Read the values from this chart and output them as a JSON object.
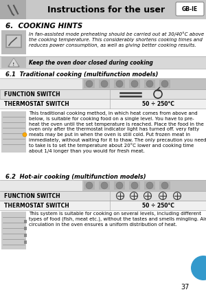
{
  "page_bg": "#ffffff",
  "header_bg": "#c8c8c8",
  "header_text": "Instructions for the user",
  "header_text_color": "#000000",
  "header_font_size": 9,
  "gb_ie_label": "GB-IE",
  "section_title": "6.  COOKING HINTS",
  "section_title_color": "#000000",
  "section_title_font_size": 7.5,
  "hint_text": "In fan-assisted mode preheating should be carried out at 30/40°C above\nthe cooking temperature. This considerably shortens cooking times and\nreduces power consumption, as well as giving better cooking results.",
  "hint_text_font_size": 5.0,
  "warning_text": "Keep the oven door closed during cooking",
  "warning_text_font_size": 5.5,
  "warning_bg": "#d8d8d8",
  "subsection1_title": "6.1  Traditional cooking (multifunction models)",
  "subsection2_title": "6.2  Hot-air cooking (multifunction models)",
  "subsection_title_font_size": 6.0,
  "table_header_bg": "#c0c0c0",
  "table_row1_bg": "#e0e0e0",
  "table_row2_bg": "#f0f0f0",
  "function_switch_label": "FUNCTION SWITCH",
  "thermostat_switch_label": "THERMOSTAT SWITCH",
  "thermostat_value1": "50 ÷ 250°C",
  "thermostat_value2": "50 ÷ 250°C",
  "table_label_font_size": 5.5,
  "body_text1": "This traditional cooking method, in which heat comes from above and\nbelow, is suitable for cooking food on a single level. You have to pre-\nheat the oven until the set temperature is reached. Place the food in the\noven only after the thermostat indicator light has turned off. very fatty\nmeats may be put in when the oven is still cold. Put frozen meat in\nimmediately, without waiting for it to thaw. The only precaution you need\nto take is to set the temperature about 20°C lower and cooking time\nabout 1/4 longer than you would for fresh meat.",
  "body_text2": "This system is suitable for cooking on several levels, including different\ntypes of food (fish, meat etc.), without the tastes and smells mingling. Air\ncirculation in the oven ensures a uniform distribution of heat.",
  "body_text_font_size": 5.0,
  "page_number": "37",
  "accent_color": "#3399cc",
  "icon_bg": "#bbbbbb",
  "icon_bg2": "#cccccc"
}
